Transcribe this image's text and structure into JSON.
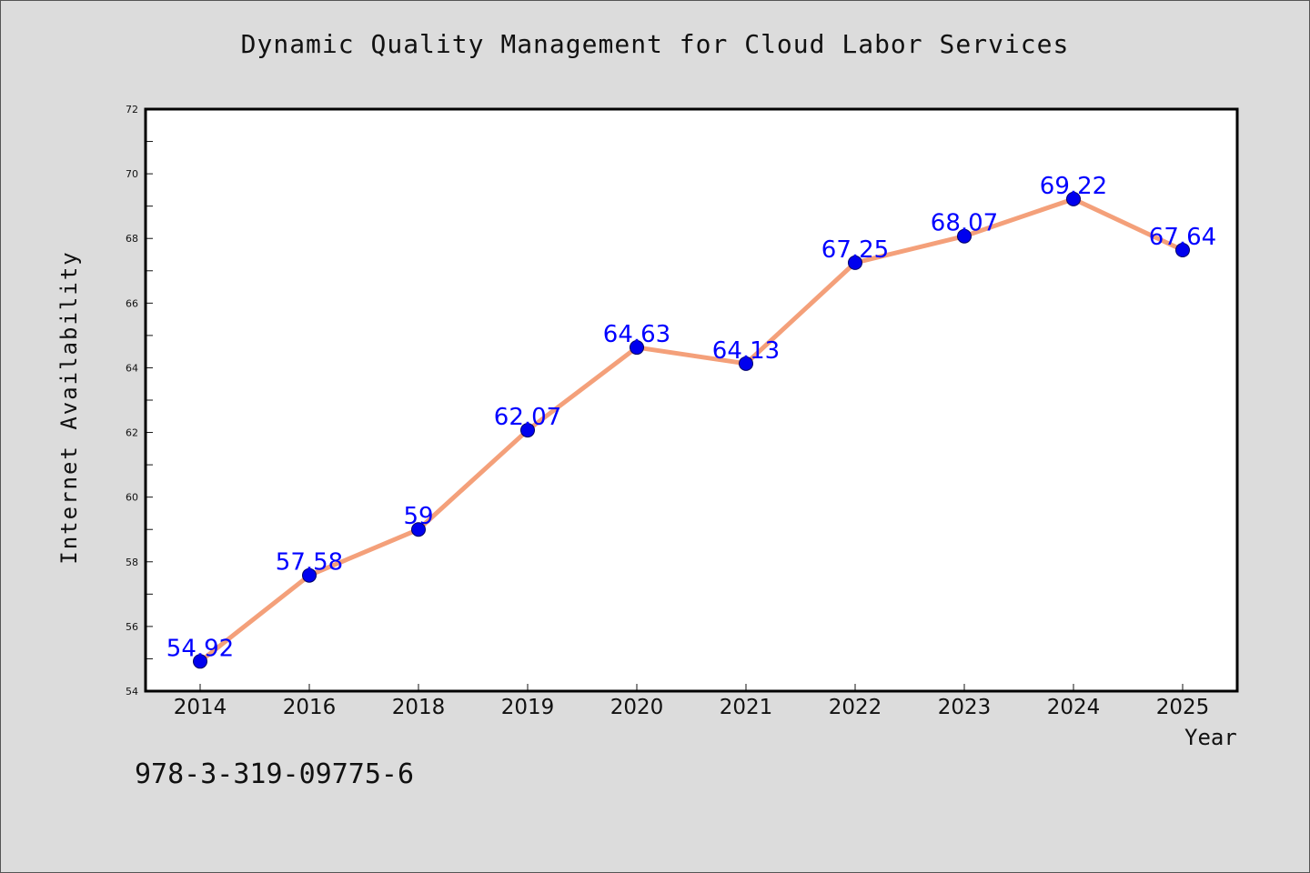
{
  "chart_data": {
    "type": "line",
    "title": "Dynamic Quality Management for Cloud Labor Services",
    "xlabel": "Year",
    "ylabel": "Internet Availability",
    "categories": [
      "2014",
      "2016",
      "2018",
      "2019",
      "2020",
      "2021",
      "2022",
      "2023",
      "2024",
      "2025"
    ],
    "series": [
      {
        "values": [
          54.92,
          57.58,
          59,
          62.07,
          64.63,
          64.13,
          67.25,
          68.07,
          69.22,
          67.64
        ],
        "labels": [
          "54.92",
          "57.58",
          "59",
          "62.07",
          "64.63",
          "64.13",
          "67.25",
          "68.07",
          "69.22",
          "67.64"
        ],
        "line_color": "#f4a07a",
        "marker_color": "#0000ee",
        "label_color": "#0000ff"
      }
    ],
    "ylim": [
      54,
      72
    ],
    "yticks": [
      "54",
      "56",
      "58",
      "60",
      "62",
      "64",
      "66",
      "68",
      "70",
      "72"
    ],
    "grid": false,
    "annotation": "978-3-319-09775-6"
  }
}
